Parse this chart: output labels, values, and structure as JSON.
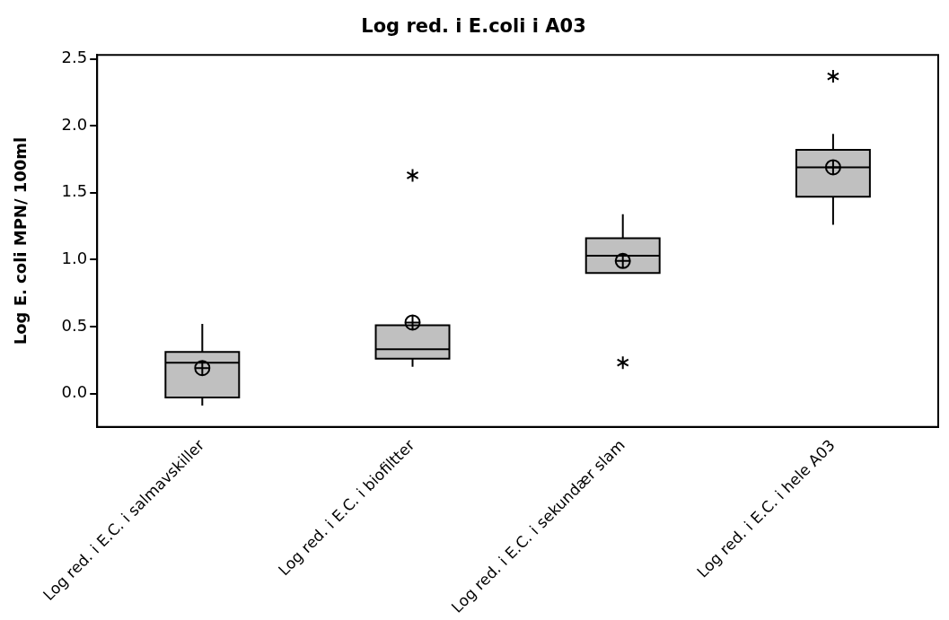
{
  "chart_data": {
    "type": "box",
    "title": "Log red. i E.coli i A03",
    "ylabel": "Log E. coli MPN/ 100ml",
    "categories": [
      "Log red. i E.C. i salmavskiller",
      "Log red. i E.C. i biofiltter",
      "Log red. i E.C. i sekundær slam",
      "Log red. i E.C. i hele A03"
    ],
    "color": "#c0c0c0",
    "boxes": [
      {
        "low": -0.09,
        "q1": -0.03,
        "median": 0.23,
        "q3": 0.31,
        "high": 0.52,
        "mean": 0.19
      },
      {
        "low": 0.2,
        "q1": 0.26,
        "median": 0.33,
        "q3": 0.51,
        "high": 0.51,
        "mean": 0.53,
        "outliers": [
          1.63
        ]
      },
      {
        "low": 0.9,
        "q1": 0.9,
        "median": 1.03,
        "q3": 1.16,
        "high": 1.34,
        "mean": 0.99,
        "outliers": [
          0.23
        ]
      },
      {
        "low": 1.26,
        "q1": 1.47,
        "median": 1.69,
        "q3": 1.82,
        "high": 1.94,
        "mean": 1.69,
        "outliers": [
          2.37
        ]
      }
    ],
    "ylim": [
      -0.25,
      2.53
    ],
    "yticks": [
      {
        "value": 0,
        "label": "0.0"
      },
      {
        "value": 0.5,
        "label": "0.5"
      },
      {
        "value": 1,
        "label": "1.0"
      },
      {
        "value": 1.5,
        "label": "1.5"
      },
      {
        "value": 2,
        "label": "2.0"
      },
      {
        "value": 2.5,
        "label": "2.5"
      }
    ],
    "grid": false,
    "legend": false
  }
}
